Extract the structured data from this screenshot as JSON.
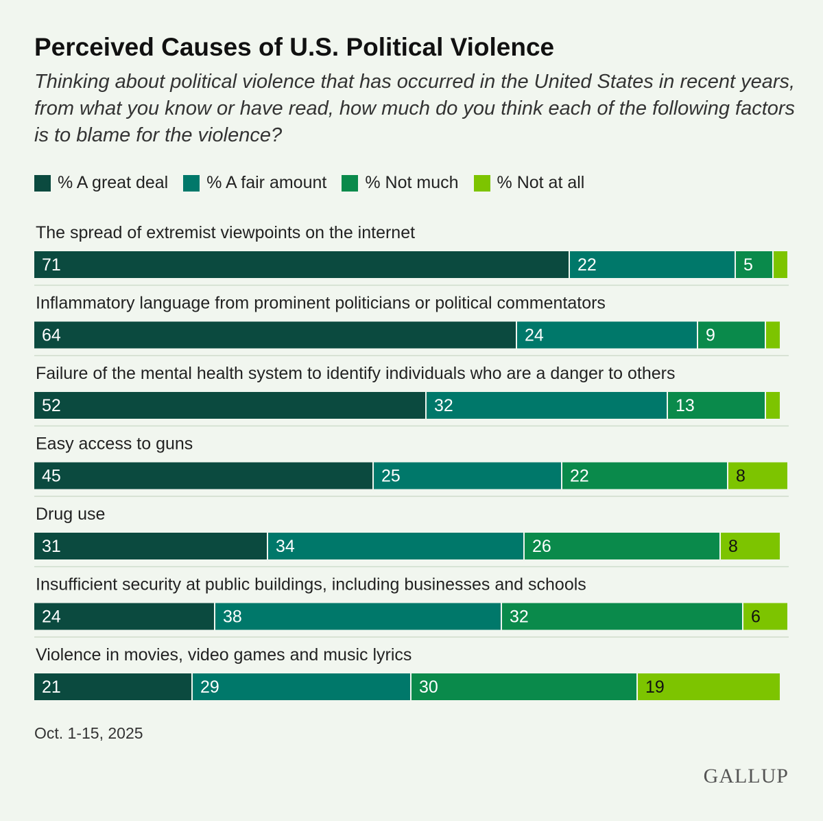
{
  "header": {
    "title": "Perceived Causes of U.S. Political Violence",
    "subtitle": "Thinking about political violence that has occurred in the United States in recent years, from what you know or have read, how much do you think each of the following factors is to blame for the violence?"
  },
  "footer": {
    "date": "Oct. 1-15, 2025",
    "brand": "GALLUP"
  },
  "colors": {
    "great_deal": "#0b4a3f",
    "fair_amount": "#00786a",
    "not_much": "#0a8a4b",
    "not_at_all": "#7dc400",
    "divider": "#cfdccc"
  },
  "chart_data": {
    "type": "bar",
    "orientation": "horizontal-stacked",
    "xlim": [
      0,
      100
    ],
    "categories": [
      "The spread of extremist viewpoints on the internet",
      "Inflammatory language from prominent politicians or political commentators",
      "Failure of the mental health system to identify individuals who are a danger to others",
      "Easy access to guns",
      "Drug use",
      "Insufficient security at public buildings, including businesses and schools",
      "Violence in movies, video games and music lyrics"
    ],
    "series": [
      {
        "name": "% A great deal",
        "key": "great_deal",
        "values": [
          71,
          64,
          52,
          45,
          31,
          24,
          21
        ],
        "labels": [
          "71",
          "64",
          "52",
          "45",
          "31",
          "24",
          "21"
        ]
      },
      {
        "name": "% A fair amount",
        "key": "fair_amount",
        "values": [
          22,
          24,
          32,
          25,
          34,
          38,
          29
        ],
        "labels": [
          "22",
          "24",
          "32",
          "25",
          "34",
          "38",
          "29"
        ]
      },
      {
        "name": "% Not much",
        "key": "not_much",
        "values": [
          5,
          9,
          13,
          22,
          26,
          32,
          30
        ],
        "labels": [
          "5",
          "9",
          "13",
          "22",
          "26",
          "32",
          "30"
        ]
      },
      {
        "name": "% Not at all",
        "key": "not_at_all",
        "values": [
          2,
          2,
          2,
          8,
          8,
          6,
          19
        ],
        "labels": [
          "",
          "",
          "",
          "8",
          "8",
          "6",
          "19"
        ]
      }
    ],
    "legend_position": "top-left",
    "grid": false
  }
}
